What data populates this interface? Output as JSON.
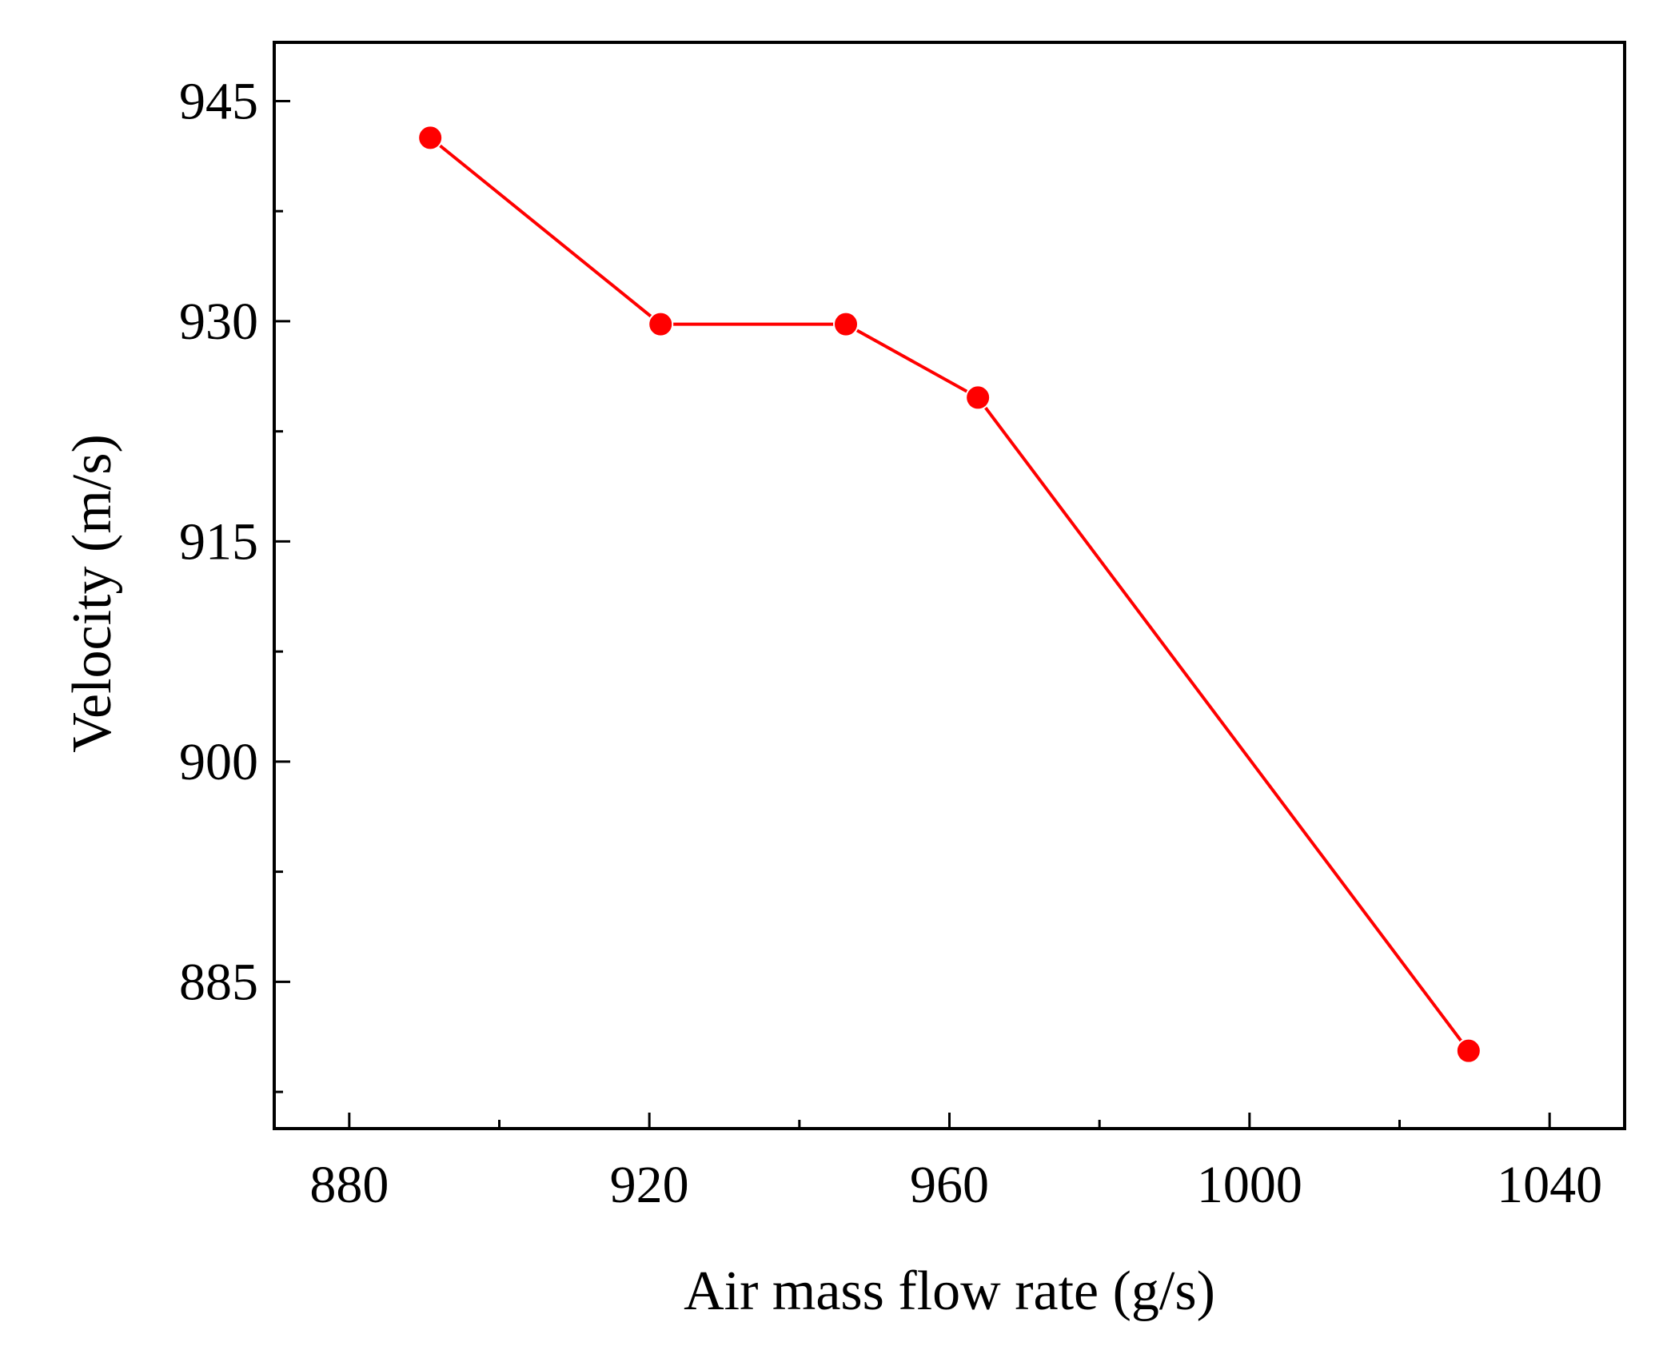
{
  "chart_data": {
    "type": "line",
    "title": "",
    "xlabel": "Air mass flow rate (g/s)",
    "ylabel": "Velocity (m/s)",
    "xlim": [
      870,
      1050
    ],
    "ylim": [
      875,
      949
    ],
    "x_ticks": [
      880,
      920,
      960,
      1000,
      1040
    ],
    "x_minor_ticks": [
      900,
      940,
      980,
      1020
    ],
    "y_ticks": [
      885,
      900,
      915,
      930,
      945
    ],
    "y_minor_ticks": [
      877.5,
      892.5,
      907.5,
      922.5,
      937.5
    ],
    "grid": false,
    "legend": "none",
    "series": [
      {
        "name": "Velocity",
        "color": "#ff0000",
        "marker": "circle",
        "x": [
          890.8,
          921.5,
          946.2,
          963.8,
          1029.2
        ],
        "y": [
          942.5,
          929.8,
          929.8,
          924.8,
          880.3
        ]
      }
    ]
  }
}
